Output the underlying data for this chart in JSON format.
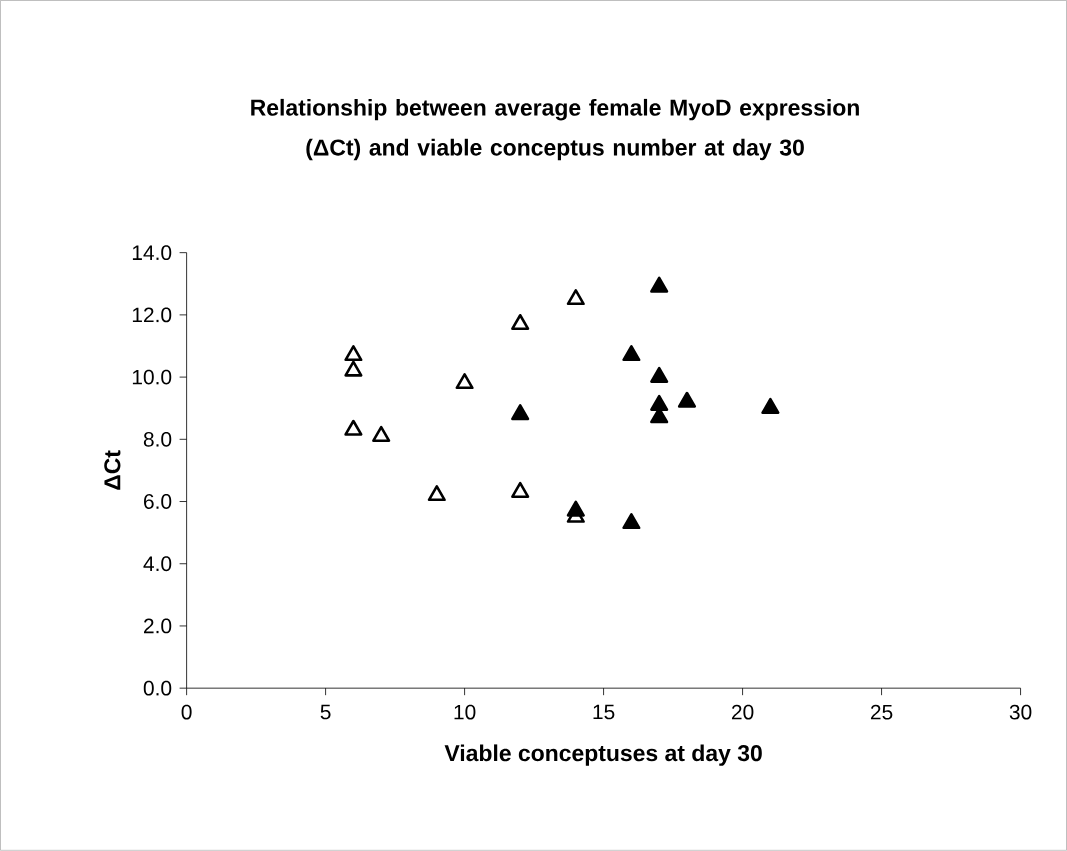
{
  "chart_data": {
    "type": "scatter",
    "title": "Relationship between average female MyoD expression (ΔCt) and viable conceptus number at day 30",
    "xlabel": "Viable conceptuses at day 30",
    "ylabel": "ΔCt",
    "marker": "triangle",
    "grid": false,
    "xlim": [
      0,
      30
    ],
    "xticks": [
      0,
      5,
      10,
      15,
      20,
      25,
      30
    ],
    "ylim": [
      0,
      14
    ],
    "yticks": [
      {
        "value": 0,
        "label": "0.0"
      },
      {
        "value": 2,
        "label": "2.0"
      },
      {
        "value": 4,
        "label": "4.0"
      },
      {
        "value": 6,
        "label": "6.0"
      },
      {
        "value": 8,
        "label": "8.0"
      },
      {
        "value": 10,
        "label": "10.0"
      },
      {
        "value": 12,
        "label": "12.0"
      },
      {
        "value": 14,
        "label": "14.0"
      }
    ],
    "series": [
      {
        "color": "#ffffff",
        "x": [
          6,
          6,
          6,
          7,
          10,
          12,
          14,
          9,
          12,
          14
        ],
        "values": [
          10.7,
          10.2,
          8.3,
          8.1,
          9.8,
          11.7,
          12.5,
          6.2,
          6.3,
          5.5
        ]
      },
      {
        "color": "#000000",
        "x": [
          17,
          16,
          17,
          17,
          17,
          18,
          21,
          12,
          14,
          16
        ],
        "values": [
          12.9,
          10.7,
          10.0,
          9.1,
          8.7,
          9.2,
          9.0,
          8.8,
          5.7,
          5.3
        ]
      }
    ]
  }
}
